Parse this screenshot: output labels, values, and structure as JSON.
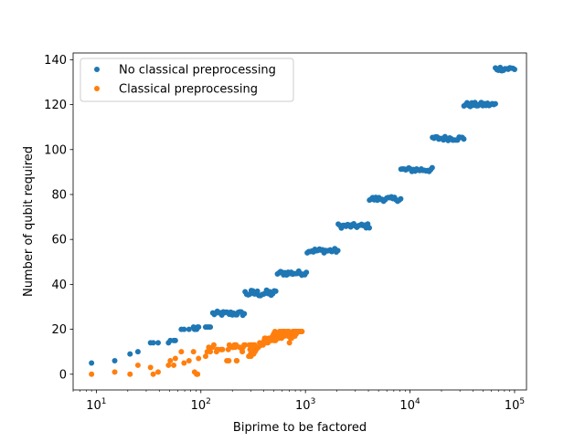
{
  "chart_data": {
    "type": "scatter",
    "title": "",
    "xlabel": "Biprime to be factored",
    "ylabel": "Number of qubit required",
    "xscale": "log",
    "xlim": [
      6,
      130000
    ],
    "ylim": [
      -7,
      143
    ],
    "xticks": [
      {
        "base": "10",
        "exp": "1",
        "value": 10
      },
      {
        "base": "10",
        "exp": "2",
        "value": 100
      },
      {
        "base": "10",
        "exp": "3",
        "value": 1000
      },
      {
        "base": "10",
        "exp": "4",
        "value": 10000
      },
      {
        "base": "10",
        "exp": "5",
        "value": 100000
      }
    ],
    "yticks": [
      {
        "label": "0",
        "value": 0
      },
      {
        "label": "20",
        "value": 20
      },
      {
        "label": "40",
        "value": 40
      },
      {
        "label": "60",
        "value": 60
      },
      {
        "label": "80",
        "value": 80
      },
      {
        "label": "100",
        "value": 100
      },
      {
        "label": "120",
        "value": 120
      },
      {
        "label": "140",
        "value": 140
      }
    ],
    "grid": false,
    "legend_position": "upper-left",
    "series": [
      {
        "name": "No classical preprocessing",
        "color": "#1f77b4",
        "points": [
          [
            9,
            5
          ],
          [
            15,
            6
          ],
          [
            21,
            9
          ],
          [
            25,
            10
          ],
          [
            33,
            14
          ],
          [
            35,
            14
          ],
          [
            39,
            14
          ],
          [
            49,
            14
          ],
          [
            51,
            15
          ],
          [
            55,
            15
          ],
          [
            57,
            15
          ],
          [
            65,
            20
          ],
          [
            69,
            20
          ],
          [
            77,
            20
          ],
          [
            85,
            21
          ],
          [
            87,
            20
          ],
          [
            91,
            20
          ],
          [
            93,
            21
          ],
          [
            95,
            21
          ],
          [
            111,
            21
          ],
          [
            115,
            21
          ],
          [
            119,
            21
          ],
          [
            123,
            21
          ]
        ],
        "bands": [
          {
            "x_min": 130,
            "x_max": 260,
            "y": 27,
            "y_spread": 1
          },
          {
            "x_min": 265,
            "x_max": 520,
            "y": 36,
            "y_spread": 1.5
          },
          {
            "x_min": 540,
            "x_max": 1020,
            "y": 45,
            "y_spread": 1
          },
          {
            "x_min": 1040,
            "x_max": 2040,
            "y": 55,
            "y_spread": 1
          },
          {
            "x_min": 2060,
            "x_max": 4080,
            "y": 66,
            "y_spread": 1
          },
          {
            "x_min": 4100,
            "x_max": 8150,
            "y": 78,
            "y_spread": 1
          },
          {
            "x_min": 8200,
            "x_max": 16300,
            "y": 91,
            "y_spread": 1
          },
          {
            "x_min": 16400,
            "x_max": 32700,
            "y": 105,
            "y_spread": 1
          },
          {
            "x_min": 32800,
            "x_max": 65500,
            "y": 120,
            "y_spread": 1
          },
          {
            "x_min": 65600,
            "x_max": 100000,
            "y": 136,
            "y_spread": 1
          }
        ]
      },
      {
        "name": "Classical preprocessing",
        "color": "#ff7f0e",
        "points": [
          [
            9,
            0
          ],
          [
            15,
            1
          ],
          [
            21,
            0
          ],
          [
            25,
            4
          ],
          [
            33,
            3
          ],
          [
            35,
            0
          ],
          [
            39,
            1
          ],
          [
            49,
            4
          ],
          [
            51,
            6
          ],
          [
            55,
            4
          ],
          [
            57,
            7
          ],
          [
            65,
            10
          ],
          [
            69,
            5
          ],
          [
            77,
            6
          ],
          [
            85,
            10
          ],
          [
            87,
            1
          ],
          [
            91,
            0
          ],
          [
            93,
            0
          ],
          [
            95,
            7
          ],
          [
            111,
            8
          ],
          [
            115,
            10
          ],
          [
            119,
            12
          ],
          [
            123,
            10
          ],
          [
            129,
            12
          ],
          [
            133,
            13
          ],
          [
            141,
            10
          ],
          [
            143,
            11
          ],
          [
            145,
            11
          ],
          [
            155,
            11
          ],
          [
            159,
            11
          ],
          [
            161,
            11
          ],
          [
            177,
            6
          ],
          [
            183,
            11
          ],
          [
            185,
            6
          ],
          [
            187,
            13
          ],
          [
            201,
            12
          ],
          [
            203,
            12
          ],
          [
            205,
            12
          ],
          [
            209,
            13
          ],
          [
            213,
            12
          ],
          [
            215,
            13
          ],
          [
            217,
            13
          ],
          [
            219,
            6
          ],
          [
            221,
            6
          ],
          [
            235,
            12
          ],
          [
            247,
            11
          ],
          [
            249,
            10
          ],
          [
            253,
            12
          ],
          [
            259,
            13
          ],
          [
            265,
            13
          ],
          [
            287,
            8
          ],
          [
            291,
            13
          ],
          [
            295,
            11
          ],
          [
            299,
            9
          ],
          [
            301,
            8
          ],
          [
            303,
            13
          ],
          [
            305,
            13
          ],
          [
            309,
            11
          ],
          [
            319,
            9
          ],
          [
            321,
            13
          ],
          [
            323,
            13
          ],
          [
            327,
            13
          ],
          [
            329,
            10
          ],
          [
            335,
            11
          ],
          [
            339,
            11
          ],
          [
            341,
            12
          ],
          [
            355,
            12
          ],
          [
            365,
            14
          ],
          [
            371,
            13
          ],
          [
            377,
            13
          ],
          [
            381,
            13
          ],
          [
            391,
            14
          ],
          [
            393,
            13
          ],
          [
            395,
            14
          ],
          [
            403,
            15
          ],
          [
            407,
            16
          ],
          [
            411,
            15
          ],
          [
            413,
            14
          ],
          [
            415,
            16
          ],
          [
            417,
            15
          ],
          [
            427,
            15
          ],
          [
            437,
            14
          ],
          [
            445,
            15
          ],
          [
            447,
            16
          ],
          [
            451,
            15
          ],
          [
            453,
            15
          ],
          [
            469,
            16
          ],
          [
            471,
            16
          ],
          [
            473,
            15
          ],
          [
            481,
            16
          ],
          [
            485,
            17
          ],
          [
            489,
            16
          ],
          [
            493,
            16
          ],
          [
            497,
            18
          ],
          [
            501,
            16
          ],
          [
            505,
            15
          ],
          [
            511,
            19
          ],
          [
            515,
            17
          ],
          [
            517,
            15
          ],
          [
            519,
            16
          ],
          [
            527,
            16
          ],
          [
            533,
            18
          ],
          [
            535,
            17
          ],
          [
            537,
            18
          ],
          [
            545,
            18
          ],
          [
            551,
            16
          ],
          [
            553,
            16
          ],
          [
            559,
            17
          ],
          [
            565,
            19
          ],
          [
            573,
            18
          ],
          [
            581,
            17
          ],
          [
            583,
            18
          ],
          [
            589,
            19
          ],
          [
            591,
            16
          ],
          [
            611,
            19
          ],
          [
            623,
            19
          ],
          [
            629,
            17
          ],
          [
            635,
            19
          ],
          [
            649,
            18
          ],
          [
            655,
            18
          ],
          [
            667,
            19
          ],
          [
            671,
            18
          ],
          [
            679,
            19
          ],
          [
            681,
            17
          ],
          [
            685,
            19
          ],
          [
            687,
            18
          ],
          [
            689,
            18
          ],
          [
            695,
            18
          ],
          [
            697,
            19
          ],
          [
            703,
            14
          ],
          [
            707,
            18
          ],
          [
            713,
            18
          ],
          [
            717,
            17
          ],
          [
            721,
            16
          ],
          [
            723,
            17
          ],
          [
            731,
            17
          ],
          [
            737,
            16
          ],
          [
            745,
            18
          ],
          [
            749,
            18
          ],
          [
            753,
            17
          ],
          [
            755,
            19
          ],
          [
            763,
            19
          ],
          [
            767,
            18
          ],
          [
            771,
            18
          ],
          [
            779,
            19
          ],
          [
            781,
            19
          ],
          [
            785,
            19
          ],
          [
            789,
            18
          ],
          [
            791,
            18
          ],
          [
            793,
            17
          ],
          [
            799,
            19
          ],
          [
            803,
            19
          ],
          [
            807,
            19
          ],
          [
            813,
            19
          ],
          [
            817,
            18
          ],
          [
            831,
            19
          ],
          [
            835,
            19
          ],
          [
            843,
            19
          ],
          [
            849,
            19
          ],
          [
            851,
            19
          ],
          [
            865,
            19
          ],
          [
            869,
            19
          ],
          [
            871,
            19
          ],
          [
            879,
            19
          ],
          [
            889,
            19
          ],
          [
            893,
            19
          ],
          [
            895,
            19
          ],
          [
            899,
            19
          ],
          [
            901,
            19
          ],
          [
            905,
            19
          ],
          [
            913,
            19
          ],
          [
            917,
            19
          ],
          [
            921,
            19
          ],
          [
            923,
            19
          ],
          [
            926,
            19
          ]
        ],
        "bands": []
      }
    ]
  }
}
